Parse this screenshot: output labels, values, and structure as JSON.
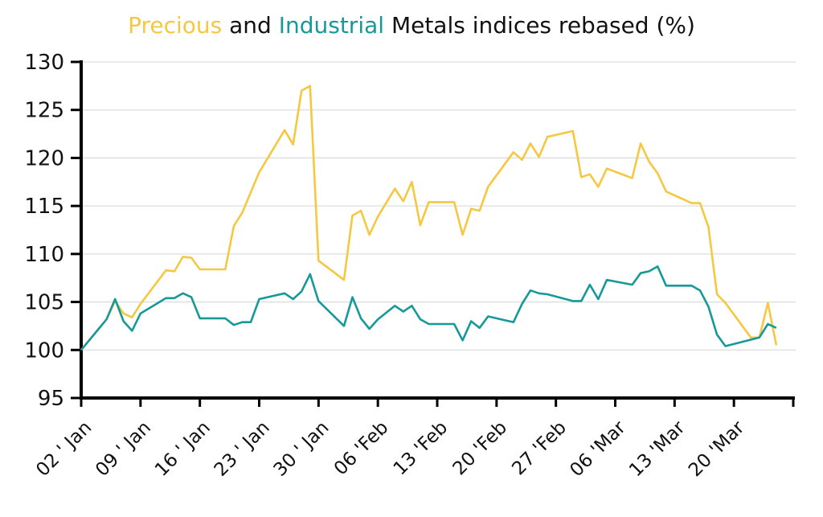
{
  "chart_data": {
    "type": "line",
    "title_parts": [
      {
        "text": "Precious",
        "color": "#F5C842"
      },
      {
        "text": " and ",
        "color": "#111111"
      },
      {
        "text": "Industrial",
        "color": "#17999A"
      },
      {
        "text": " Metals indices rebased (%)",
        "color": "#111111"
      }
    ],
    "xlabel": "",
    "ylabel": "",
    "ylim": [
      95,
      130
    ],
    "yticks": [
      95,
      100,
      105,
      110,
      115,
      120,
      125,
      130
    ],
    "xlim": [
      "Jan 02",
      "Mar 27"
    ],
    "xticks": [
      "Jan 02",
      "Jan 09",
      "Jan 16",
      "Jan 23",
      "Jan 30",
      "Feb 06",
      "Feb 13",
      "Feb 20",
      "Feb 27",
      "Mar 06",
      "Mar 13",
      "Mar 20",
      "Mar 27"
    ],
    "xtick_labels": [
      "02 ' Jan",
      "09 ' Jan",
      "16 ' Jan",
      "23 ' Jan",
      "30 ' Jan",
      "06 'Feb",
      "13 'Feb",
      "20 'Feb",
      "27 'Feb",
      "06 'Mar",
      "13 'Mar",
      "20 'Mar",
      ""
    ],
    "grid": "horizontal",
    "legend": "none (colored title words)",
    "series": [
      {
        "name": "Precious",
        "color": "#F5C842",
        "points": [
          [
            "Jan 02",
            100
          ],
          [
            "Jan 05",
            103.2
          ],
          [
            "Jan 06",
            105.1
          ],
          [
            "Jan 07",
            103.8
          ],
          [
            "Jan 08",
            103.4
          ],
          [
            "Jan 09",
            104.8
          ],
          [
            "Jan 12",
            108.3
          ],
          [
            "Jan 13",
            108.2
          ],
          [
            "Jan 14",
            109.7
          ],
          [
            "Jan 15",
            109.6
          ],
          [
            "Jan 16",
            108.4
          ],
          [
            "Jan 19",
            108.4
          ],
          [
            "Jan 20",
            112.9
          ],
          [
            "Jan 21",
            114.3
          ],
          [
            "Jan 23",
            118.5
          ],
          [
            "Jan 26",
            122.9
          ],
          [
            "Jan 27",
            121.4
          ],
          [
            "Jan 28",
            127.0
          ],
          [
            "Jan 29",
            127.5
          ],
          [
            "Jan 30",
            109.3
          ],
          [
            "Feb 02",
            107.3
          ],
          [
            "Feb 03",
            114.0
          ],
          [
            "Feb 04",
            114.5
          ],
          [
            "Feb 05",
            112.0
          ],
          [
            "Feb 06",
            113.9
          ],
          [
            "Feb 08",
            116.8
          ],
          [
            "Feb 09",
            115.5
          ],
          [
            "Feb 10",
            117.5
          ],
          [
            "Feb 11",
            113.0
          ],
          [
            "Feb 12",
            115.4
          ],
          [
            "Feb 15",
            115.4
          ],
          [
            "Feb 16",
            112.0
          ],
          [
            "Feb 17",
            114.7
          ],
          [
            "Feb 18",
            114.5
          ],
          [
            "Feb 19",
            117.0
          ],
          [
            "Feb 22",
            120.6
          ],
          [
            "Feb 23",
            119.8
          ],
          [
            "Feb 24",
            121.5
          ],
          [
            "Feb 25",
            120.1
          ],
          [
            "Feb 26",
            122.2
          ],
          [
            "Mar 01",
            122.8
          ],
          [
            "Mar 02",
            118.0
          ],
          [
            "Mar 03",
            118.3
          ],
          [
            "Mar 04",
            117.0
          ],
          [
            "Mar 05",
            118.9
          ],
          [
            "Mar 08",
            117.9
          ],
          [
            "Mar 09",
            121.5
          ],
          [
            "Mar 10",
            119.6
          ],
          [
            "Mar 11",
            118.4
          ],
          [
            "Mar 12",
            116.5
          ],
          [
            "Mar 15",
            115.3
          ],
          [
            "Mar 16",
            115.3
          ],
          [
            "Mar 17",
            112.8
          ],
          [
            "Mar 18",
            105.8
          ],
          [
            "Mar 19",
            104.9
          ],
          [
            "Mar 22",
            101.3
          ],
          [
            "Mar 23",
            101.3
          ],
          [
            "Mar 24",
            104.9
          ],
          [
            "Mar 25",
            100.5
          ]
        ]
      },
      {
        "name": "Industrial",
        "color": "#17999A",
        "points": [
          [
            "Jan 02",
            100
          ],
          [
            "Jan 05",
            103.2
          ],
          [
            "Jan 06",
            105.3
          ],
          [
            "Jan 07",
            103.0
          ],
          [
            "Jan 08",
            102.0
          ],
          [
            "Jan 09",
            103.8
          ],
          [
            "Jan 12",
            105.4
          ],
          [
            "Jan 13",
            105.4
          ],
          [
            "Jan 14",
            105.9
          ],
          [
            "Jan 15",
            105.5
          ],
          [
            "Jan 16",
            103.3
          ],
          [
            "Jan 19",
            103.3
          ],
          [
            "Jan 20",
            102.6
          ],
          [
            "Jan 21",
            102.9
          ],
          [
            "Jan 22",
            102.9
          ],
          [
            "Jan 23",
            105.3
          ],
          [
            "Jan 26",
            105.9
          ],
          [
            "Jan 27",
            105.3
          ],
          [
            "Jan 28",
            106.1
          ],
          [
            "Jan 29",
            107.9
          ],
          [
            "Jan 30",
            105.1
          ],
          [
            "Feb 02",
            102.5
          ],
          [
            "Feb 03",
            105.5
          ],
          [
            "Feb 04",
            103.3
          ],
          [
            "Feb 05",
            102.2
          ],
          [
            "Feb 06",
            103.2
          ],
          [
            "Feb 08",
            104.6
          ],
          [
            "Feb 09",
            104.0
          ],
          [
            "Feb 10",
            104.6
          ],
          [
            "Feb 11",
            103.2
          ],
          [
            "Feb 12",
            102.7
          ],
          [
            "Feb 15",
            102.7
          ],
          [
            "Feb 16",
            101.0
          ],
          [
            "Feb 17",
            103.0
          ],
          [
            "Feb 18",
            102.3
          ],
          [
            "Feb 19",
            103.5
          ],
          [
            "Feb 22",
            102.9
          ],
          [
            "Feb 23",
            104.8
          ],
          [
            "Feb 24",
            106.2
          ],
          [
            "Feb 25",
            105.9
          ],
          [
            "Feb 26",
            105.8
          ],
          [
            "Mar 01",
            105.1
          ],
          [
            "Mar 02",
            105.1
          ],
          [
            "Mar 03",
            106.8
          ],
          [
            "Mar 04",
            105.3
          ],
          [
            "Mar 05",
            107.3
          ],
          [
            "Mar 08",
            106.8
          ],
          [
            "Mar 09",
            108.0
          ],
          [
            "Mar 10",
            108.2
          ],
          [
            "Mar 11",
            108.7
          ],
          [
            "Mar 12",
            106.7
          ],
          [
            "Mar 15",
            106.7
          ],
          [
            "Mar 16",
            106.2
          ],
          [
            "Mar 17",
            104.5
          ],
          [
            "Mar 18",
            101.6
          ],
          [
            "Mar 19",
            100.4
          ],
          [
            "Mar 23",
            101.3
          ],
          [
            "Mar 24",
            102.7
          ],
          [
            "Mar 25",
            102.3
          ]
        ]
      }
    ]
  }
}
